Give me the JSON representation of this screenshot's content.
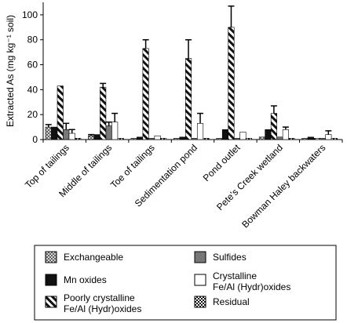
{
  "chart_data": {
    "type": "bar",
    "ylabel": "Extracted As (mg kg⁻¹ soil)",
    "xlabel": "",
    "ylim": [
      0,
      110
    ],
    "yticks": [
      0,
      20,
      40,
      60,
      80,
      100
    ],
    "grid": false,
    "legend_placement": "bottom",
    "categories": [
      "Top of tailings",
      "Middle of tailings",
      "Toe of tailings",
      "Sedimentation pond",
      "Pond outlet",
      "Pete’s Creek wetland",
      "Bowman Haley backwaters"
    ],
    "series": [
      {
        "name": "Exchangeable",
        "pattern": "crosshatch",
        "values": [
          10,
          3,
          1,
          1,
          1,
          2,
          1
        ],
        "errors": [
          2,
          1,
          0,
          0,
          0,
          0,
          0
        ]
      },
      {
        "name": "Mn oxides",
        "pattern": "black",
        "values": [
          10,
          4,
          2,
          2,
          8,
          8,
          2
        ],
        "errors": [
          0,
          0,
          0,
          0,
          0,
          0,
          0
        ]
      },
      {
        "name": "Poorly crystalline Fe/Al (Hydr)oxides",
        "pattern": "diagonal",
        "values": [
          43,
          42,
          73,
          65,
          90,
          21,
          1
        ],
        "errors": [
          0,
          3,
          7,
          15,
          17,
          6,
          0
        ]
      },
      {
        "name": "Sulfides",
        "pattern": "gray",
        "values": [
          8,
          11,
          1,
          1,
          1,
          2,
          1
        ],
        "errors": [
          5,
          3,
          0,
          0,
          0,
          0,
          0
        ]
      },
      {
        "name": "Crystalline Fe/Al (Hydr)oxides",
        "pattern": "white",
        "values": [
          5,
          14,
          3,
          13,
          6,
          8,
          4
        ],
        "errors": [
          3,
          7,
          0,
          8,
          0,
          2,
          3
        ]
      },
      {
        "name": "Residual",
        "pattern": "checker",
        "values": [
          1,
          1,
          1,
          1,
          1,
          1,
          1
        ],
        "errors": [
          0,
          0,
          0,
          0,
          0,
          0,
          0
        ]
      }
    ],
    "legend": {
      "rows": [
        [
          {
            "series": 0,
            "label": "Exchangeable"
          },
          {
            "series": 3,
            "label": "Sulfides"
          }
        ],
        [
          {
            "series": 1,
            "label": "Mn oxides"
          },
          {
            "series": 4,
            "label": "Crystalline\nFe/Al (Hydr)oxides"
          }
        ],
        [
          {
            "series": 2,
            "label": "Poorly crystalline\nFe/Al (Hydr)oxides"
          },
          {
            "series": 5,
            "label": "Residual"
          }
        ]
      ]
    }
  }
}
